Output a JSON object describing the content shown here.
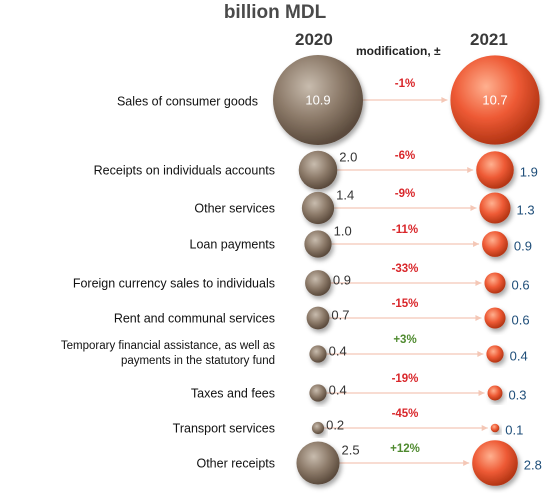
{
  "chart_data": {
    "type": "bubble",
    "title": "billion MDL",
    "years": [
      "2020",
      "2021"
    ],
    "change_header": "modification, ±",
    "colors": {
      "y2020": "#8d7b6a",
      "y2021": "#ee5a35",
      "change_negative": "#d9262a",
      "change_positive": "#4f8a2f",
      "value_2021_text": "#1f4e79",
      "connector": "#f4c7b6"
    },
    "rows": [
      {
        "category": "Sales of consumer goods",
        "v2020": 10.9,
        "v2020_label": "10.9",
        "v2021": 10.7,
        "v2021_label": "10.7",
        "change": "-1%"
      },
      {
        "category": "Receipts on individuals accounts",
        "v2020": 2.0,
        "v2020_label": "2.0",
        "v2021": 1.9,
        "v2021_label": "1.9",
        "change": "-6%"
      },
      {
        "category": "Other services",
        "v2020": 1.4,
        "v2020_label": "1.4",
        "v2021": 1.3,
        "v2021_label": "1.3",
        "change": "-9%"
      },
      {
        "category": "Loan payments",
        "v2020": 1.0,
        "v2020_label": "1.0",
        "v2021": 0.9,
        "v2021_label": "0.9",
        "change": "-11%"
      },
      {
        "category": "Foreign currency sales to individuals",
        "v2020": 0.9,
        "v2020_label": "0.9",
        "v2021": 0.6,
        "v2021_label": "0.6",
        "change": "-33%"
      },
      {
        "category": "Rent and communal services",
        "v2020": 0.7,
        "v2020_label": "0.7",
        "v2021": 0.6,
        "v2021_label": "0.6",
        "change": "-15%"
      },
      {
        "category": [
          "Temporary financial assistance, as well as",
          "payments in the statutory fund"
        ],
        "v2020": 0.4,
        "v2020_label": "0.4",
        "v2021": 0.4,
        "v2021_label": "0.4",
        "change": "+3%"
      },
      {
        "category": "Taxes and fees",
        "v2020": 0.4,
        "v2020_label": "0.4",
        "v2021": 0.3,
        "v2021_label": "0.3",
        "change": "-19%"
      },
      {
        "category": "Transport services",
        "v2020": 0.2,
        "v2020_label": "0.2",
        "v2021": 0.1,
        "v2021_label": "0.1",
        "change": "-45%"
      },
      {
        "category": "Other receipts",
        "v2020": 2.5,
        "v2020_label": "2.5",
        "v2021": 2.8,
        "v2021_label": "2.8",
        "change": "+12%"
      }
    ]
  }
}
